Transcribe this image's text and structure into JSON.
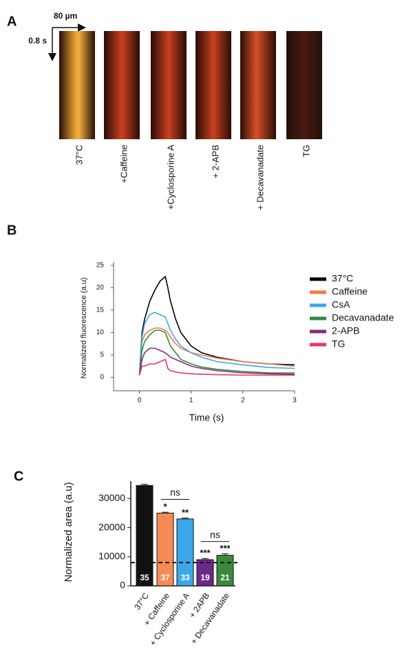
{
  "panel_a": {
    "panel": "A",
    "scale_x": "80 µm",
    "scale_y": "0.8 s",
    "images": [
      "37°C",
      "+Caffeine",
      "+Cyclosporine A",
      "+ 2-APB",
      "+ Decavanadate",
      "TG"
    ]
  },
  "chart_data": [
    {
      "type": "line",
      "panel": "B",
      "ylabel": "Normalized fluorescence (a.u)",
      "xlabel": "Time (s)",
      "x": [
        0,
        0.05,
        0.1,
        0.2,
        0.3,
        0.4,
        0.5,
        0.55,
        0.6,
        0.7,
        0.8,
        1.0,
        1.2,
        1.5,
        2.0,
        2.5,
        3.0
      ],
      "series": [
        {
          "name": "37°C",
          "color": "#000000",
          "values": [
            0.5,
            10,
            13,
            17,
            19.5,
            21.5,
            22.5,
            20,
            17,
            13,
            10,
            7,
            5.5,
            4.5,
            3.5,
            3,
            2.8
          ]
        },
        {
          "name": "Caffeine",
          "color": "#f07a45",
          "values": [
            0.5,
            8,
            9.5,
            10.5,
            11,
            11,
            10.5,
            10,
            9,
            7.5,
            6.5,
            5.5,
            5,
            4.3,
            3.5,
            3,
            2.5
          ]
        },
        {
          "name": "CsA",
          "color": "#3aa8e8",
          "values": [
            0.5,
            9,
            12,
            14,
            14.5,
            14,
            13.5,
            12,
            10.5,
            8.5,
            7,
            5.5,
            4.5,
            3.5,
            2.8,
            2.2,
            2
          ]
        },
        {
          "name": "Decavanadate",
          "color": "#2e8a3a",
          "values": [
            0.5,
            6,
            8,
            9.5,
            10.5,
            10.5,
            10,
            8.5,
            7,
            5.5,
            4,
            3,
            2.3,
            1.8,
            1.3,
            1,
            1
          ]
        },
        {
          "name": "2-APB",
          "color": "#8a2a78",
          "values": [
            0.5,
            4,
            5.5,
            6.5,
            6.5,
            6,
            5.5,
            5,
            4.5,
            4,
            3.5,
            2.5,
            2,
            1.5,
            1,
            0.8,
            0.7
          ]
        },
        {
          "name": "TG",
          "color": "#e8336e",
          "values": [
            0.5,
            2.5,
            2.5,
            3,
            3,
            3.5,
            4,
            2,
            1.5,
            1.2,
            1,
            0.8,
            0.7,
            0.6,
            0.5,
            0.5,
            0.5
          ]
        }
      ],
      "xlim": [
        -0.5,
        3
      ],
      "xticks": [
        0,
        1,
        2,
        3
      ],
      "ylim": [
        -3,
        25
      ],
      "yticks": [
        0,
        5,
        10,
        15,
        20,
        25
      ],
      "legend": "right"
    },
    {
      "type": "bar",
      "panel": "C",
      "ylabel": "Normalized area (a.u)",
      "categories": [
        "37°C",
        "+ Caffeine",
        "+ Cyclosporine A",
        "+ 2APB",
        "+ Decavanadate"
      ],
      "values": [
        34500,
        25000,
        23000,
        9000,
        10500
      ],
      "errors": [
        400,
        300,
        300,
        400,
        500
      ],
      "colors": [
        "#111111",
        "#f58a55",
        "#3aa8e8",
        "#6a2a8a",
        "#3a8a3a"
      ],
      "n_labels": [
        "35",
        "37",
        "33",
        "19",
        "21"
      ],
      "stars": [
        {
          "category": 1,
          "label": "*"
        },
        {
          "category": 2,
          "label": "**"
        },
        {
          "category": 3,
          "label": "***"
        },
        {
          "category": 4,
          "label": "***"
        }
      ],
      "brackets": [
        {
          "from": 1,
          "to": 2,
          "label": "ns"
        },
        {
          "from": 3,
          "to": 4,
          "label": "ns"
        }
      ],
      "reference_line": 8000,
      "ylim": [
        0,
        36000
      ],
      "yticks": [
        0,
        10000,
        20000,
        30000
      ]
    }
  ]
}
